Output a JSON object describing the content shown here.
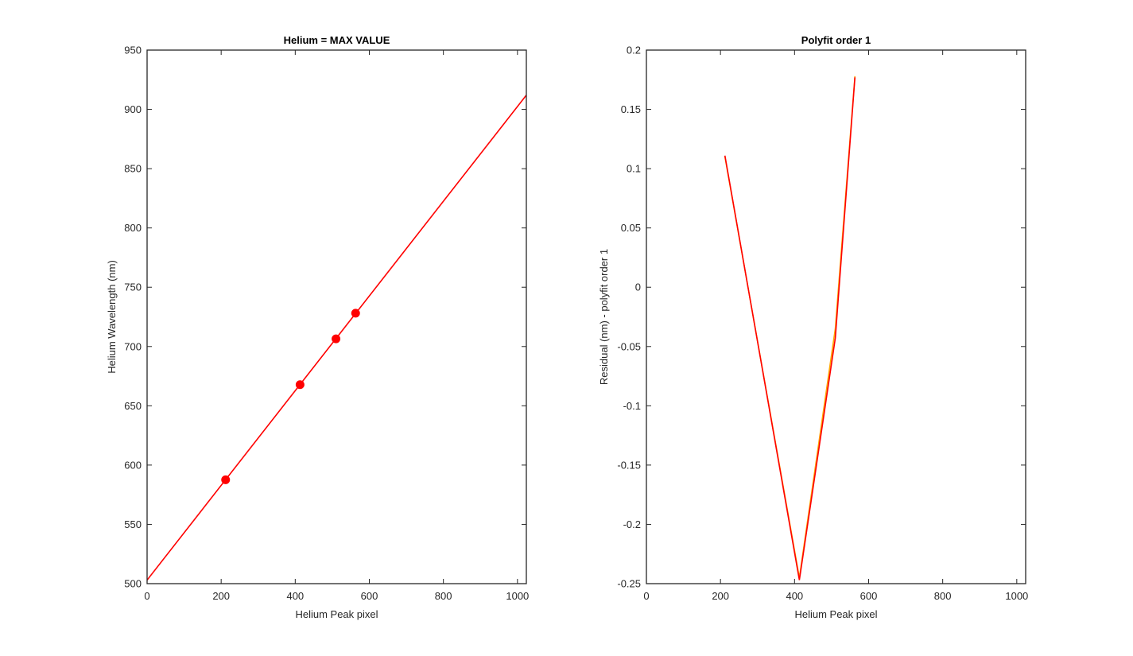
{
  "chart_data": [
    {
      "type": "line",
      "title": "Helium = MAX VALUE",
      "xlabel": "Helium Peak pixel",
      "ylabel": "Helium Wavelength (nm)",
      "xlim": [
        0,
        1024
      ],
      "ylim": [
        500,
        950
      ],
      "xticks": [
        0,
        200,
        400,
        600,
        800,
        1000
      ],
      "yticks": [
        500,
        550,
        600,
        650,
        700,
        750,
        800,
        850,
        900,
        950
      ],
      "grid": false,
      "series": [
        {
          "kind": "markers",
          "color": "#ff0000",
          "x": [
            212,
            413,
            510,
            563
          ],
          "y": [
            587.6,
            667.8,
            706.5,
            728.1
          ]
        },
        {
          "kind": "line",
          "color": "#ff0000",
          "x": [
            0,
            1024
          ],
          "y": [
            503,
            912
          ]
        }
      ]
    },
    {
      "type": "line",
      "title": "Polyfit order 1",
      "xlabel": "Helium Peak pixel",
      "ylabel": "Residual (nm) - polyfit order 1",
      "xlim": [
        0,
        1024
      ],
      "ylim": [
        -0.25,
        0.2
      ],
      "xticks": [
        0,
        200,
        400,
        600,
        800,
        1000
      ],
      "yticks": [
        -0.25,
        -0.2,
        -0.15,
        -0.1,
        -0.05,
        0,
        0.05,
        0.1,
        0.15,
        0.2
      ],
      "ytick_labels": [
        "-0.25",
        "-0.2",
        "-0.15",
        "-0.1",
        "-0.05",
        "0",
        "0.05",
        "0.1",
        "0.15",
        "0.2"
      ],
      "grid": false,
      "series": [
        {
          "kind": "line",
          "color": "#ffa500",
          "x": [
            212,
            413,
            510,
            563
          ],
          "y": [
            0.11,
            -0.245,
            -0.035,
            0.178
          ]
        },
        {
          "kind": "line",
          "color": "#ff0000",
          "x": [
            212,
            413,
            510,
            563
          ],
          "y": [
            0.111,
            -0.247,
            -0.043,
            0.177
          ]
        }
      ]
    }
  ]
}
